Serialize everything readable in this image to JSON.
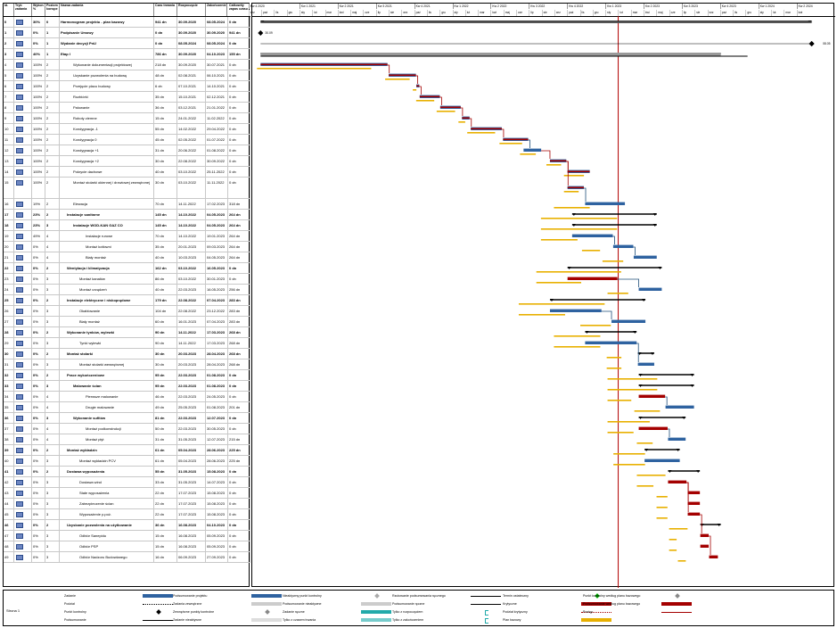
{
  "columns": {
    "id": "Id.",
    "mode": "Tryb zadania",
    "pct": "Wykon %",
    "level": "Poziom konspe",
    "name": "Nazwa zadania",
    "duration": "Czas trwania",
    "start": "Rozpoczęcie",
    "finish": "Zakończenie",
    "slack": "Całkowity zapas czasu"
  },
  "timeline": {
    "quarters": [
      "Kw 4 2020",
      "Kw 1 2021",
      "Kw 2 2021",
      "Kw 3 2021",
      "Kw 4 2021",
      "Kw 1 2022",
      "Kw 2 2022",
      "Kw 3 2022",
      "Kw 4 2022",
      "Kw 1 2023",
      "Kw 2 2023",
      "Kw 3 2023",
      "Kw 4 2023",
      "Kw 1 2024",
      "Kw 2 2024"
    ],
    "months": [
      "wrz",
      "paź",
      "lis",
      "gru",
      "sty",
      "lut",
      "mar",
      "kwi",
      "maj",
      "cze",
      "lip",
      "sie",
      "wrz",
      "paź",
      "lis",
      "gru",
      "sty",
      "lut",
      "mar",
      "kwi",
      "maj",
      "cze",
      "lip",
      "sie",
      "wrz",
      "paź",
      "lis",
      "gru",
      "sty",
      "lut",
      "mar",
      "kwi",
      "maj",
      "cze",
      "lip",
      "sie",
      "wrz",
      "paź",
      "lis",
      "gru",
      "sty",
      "lut",
      "mar",
      "kwi"
    ],
    "milestone_labels": [
      "30.09",
      "08.05"
    ]
  },
  "tasks": [
    {
      "id": "0",
      "pct": "30%",
      "lvl": "0",
      "name": "Harmonogram projektu - plan bazowy",
      "dur": "941 dn",
      "start": "30.09.2020",
      "finish": "08.05.2024",
      "slack": "0 dn",
      "bold": true
    },
    {
      "id": "1",
      "pct": "0%",
      "lvl": "1",
      "name": "Podpisanie Umowy",
      "dur": "0 dn",
      "start": "30.09.2020",
      "finish": "30.09.2020",
      "slack": "941 dn",
      "bold": true
    },
    {
      "id": "2",
      "pct": "0%",
      "lvl": "1",
      "name": "Wydanie decyzji PnU",
      "dur": "0 dn",
      "start": "08.05.2024",
      "finish": "08.05.2024",
      "slack": "0 dn",
      "bold": true
    },
    {
      "id": "3",
      "pct": "40%",
      "lvl": "1",
      "name": "Etap I",
      "dur": "786 dn",
      "start": "30.09.2020",
      "finish": "04.10.2023",
      "slack": "155 dn",
      "bold": true
    },
    {
      "id": "4",
      "pct": "100%",
      "lvl": "2",
      "name": "Wykonanie dokumentacji projektowej",
      "dur": "218 dn",
      "start": "30.09.2020",
      "finish": "30.07.2021",
      "slack": "0 dn"
    },
    {
      "id": "5",
      "pct": "100%",
      "lvl": "2",
      "name": "Uzyskanie pozwolenia na budowę",
      "dur": "48 dn",
      "start": "02.08.2021",
      "finish": "06.10.2021",
      "slack": "0 dn"
    },
    {
      "id": "6",
      "pct": "100%",
      "lvl": "2",
      "name": "Przejęcie placu budowy",
      "dur": "6 dn",
      "start": "07.10.2021",
      "finish": "14.10.2021",
      "slack": "0 dn"
    },
    {
      "id": "7",
      "pct": "100%",
      "lvl": "2",
      "name": "Rozbiórki",
      "dur": "35 dn",
      "start": "15.10.2021",
      "finish": "02.12.2021",
      "slack": "0 dn"
    },
    {
      "id": "8",
      "pct": "100%",
      "lvl": "2",
      "name": "Palowanie",
      "dur": "36 dn",
      "start": "03.12.2021",
      "finish": "21.01.2022",
      "slack": "0 dn"
    },
    {
      "id": "9",
      "pct": "100%",
      "lvl": "2",
      "name": "Roboty ziemne",
      "dur": "15 dn",
      "start": "24.01.2022",
      "finish": "11.02.2022",
      "slack": "0 dn"
    },
    {
      "id": "10",
      "pct": "100%",
      "lvl": "2",
      "name": "Kondygnacja -1",
      "dur": "55 dn",
      "start": "14.02.2022",
      "finish": "29.04.2022",
      "slack": "0 dn"
    },
    {
      "id": "11",
      "pct": "100%",
      "lvl": "2",
      "name": "Kondygnacja 0",
      "dur": "45 dn",
      "start": "02.05.2022",
      "finish": "01.07.2022",
      "slack": "0 dn"
    },
    {
      "id": "12",
      "pct": "100%",
      "lvl": "2",
      "name": "Kondygnacja +1",
      "dur": "31 dn",
      "start": "20.06.2022",
      "finish": "01.08.2022",
      "slack": "0 dn"
    },
    {
      "id": "13",
      "pct": "100%",
      "lvl": "2",
      "name": "Kondygnacja +2",
      "dur": "30 dn",
      "start": "22.08.2022",
      "finish": "30.09.2022",
      "slack": "0 dn"
    },
    {
      "id": "14",
      "pct": "100%",
      "lvl": "2",
      "name": "Pokrycie dachowe",
      "dur": "40 dn",
      "start": "03.10.2022",
      "finish": "25.11.2022",
      "slack": "0 dn"
    },
    {
      "id": "15",
      "pct": "100%",
      "lvl": "2",
      "name": "Montaż stolarki okiennej i drzwiowej zewnętrznej",
      "dur": "30 dn",
      "start": "03.10.2022",
      "finish": "11.11.2022",
      "slack": "0 dn",
      "tall": true
    },
    {
      "id": "16",
      "pct": "19%",
      "lvl": "2",
      "name": "Elewacja",
      "dur": "70 dn",
      "start": "14.11.2022",
      "finish": "17.02.2023",
      "slack": "318 dn"
    },
    {
      "id": "17",
      "pct": "23%",
      "lvl": "2",
      "name": "Instalacje sanitarne",
      "dur": "145 dn",
      "start": "14.10.2022",
      "finish": "04.05.2023",
      "slack": "264 dn",
      "bold": true
    },
    {
      "id": "18",
      "pct": "23%",
      "lvl": "3",
      "name": "Instalacje WOD-KAN GAZ CO",
      "dur": "145 dn",
      "start": "14.10.2022",
      "finish": "04.05.2023",
      "slack": "264 dn",
      "bold": true
    },
    {
      "id": "19",
      "pct": "49%",
      "lvl": "4",
      "name": "Instalacje rurowe",
      "dur": "70 dn",
      "start": "14.10.2022",
      "finish": "19.01.2023",
      "slack": "264 dn"
    },
    {
      "id": "20",
      "pct": "0%",
      "lvl": "4",
      "name": "Montaż kotłowni",
      "dur": "35 dn",
      "start": "20.01.2023",
      "finish": "09.03.2023",
      "slack": "264 dn"
    },
    {
      "id": "21",
      "pct": "0%",
      "lvl": "4",
      "name": "Biały montaż",
      "dur": "40 dn",
      "start": "10.03.2023",
      "finish": "04.05.2023",
      "slack": "264 dn"
    },
    {
      "id": "22",
      "pct": "0%",
      "lvl": "2",
      "name": "Wentylacja i klimatyzacja",
      "dur": "162 dn",
      "start": "03.10.2022",
      "finish": "16.05.2023",
      "slack": "0 dn",
      "bold": true
    },
    {
      "id": "23",
      "pct": "0%",
      "lvl": "3",
      "name": "Montaż kanałów",
      "dur": "86 dn",
      "start": "03.10.2022",
      "finish": "30.01.2023",
      "slack": "0 dn"
    },
    {
      "id": "24",
      "pct": "0%",
      "lvl": "3",
      "name": "Montaż urządzeń",
      "dur": "40 dn",
      "start": "22.03.2023",
      "finish": "16.05.2023",
      "slack": "256 dn"
    },
    {
      "id": "25",
      "pct": "0%",
      "lvl": "2",
      "name": "Instalacje elektryczne i niskoprądowe",
      "dur": "179 dn",
      "start": "22.08.2022",
      "finish": "07.04.2023",
      "slack": "283 dn",
      "bold": true
    },
    {
      "id": "26",
      "pct": "0%",
      "lvl": "3",
      "name": "Okablowanie",
      "dur": "104 dn",
      "start": "22.08.2022",
      "finish": "23.12.2022",
      "slack": "283 dn"
    },
    {
      "id": "27",
      "pct": "0%",
      "lvl": "3",
      "name": "Biały montaż",
      "dur": "60 dn",
      "start": "16.01.2023",
      "finish": "07.04.2023",
      "slack": "283 dn"
    },
    {
      "id": "28",
      "pct": "0%",
      "lvl": "2",
      "name": "Wykonanie tynków, wylewki",
      "dur": "90 dn",
      "start": "14.11.2022",
      "finish": "17.03.2023",
      "slack": "268 dn",
      "bold": true
    },
    {
      "id": "29",
      "pct": "0%",
      "lvl": "3",
      "name": "Tynki wylewki",
      "dur": "90 dn",
      "start": "14.11.2022",
      "finish": "17.03.2023",
      "slack": "268 dn"
    },
    {
      "id": "30",
      "pct": "0%",
      "lvl": "2",
      "name": "Montaż stolarki",
      "dur": "30 dn",
      "start": "20.03.2023",
      "finish": "28.04.2023",
      "slack": "268 dn",
      "bold": true
    },
    {
      "id": "31",
      "pct": "0%",
      "lvl": "3",
      "name": "Montaż stolarki wewnętrznej",
      "dur": "30 dn",
      "start": "20.03.2023",
      "finish": "28.04.2023",
      "slack": "268 dn"
    },
    {
      "id": "32",
      "pct": "0%",
      "lvl": "2",
      "name": "Prace wykończeniowe",
      "dur": "95 dn",
      "start": "22.03.2023",
      "finish": "01.08.2023",
      "slack": "0 dn",
      "bold": true
    },
    {
      "id": "33",
      "pct": "0%",
      "lvl": "3",
      "name": "Malowanie ścian",
      "dur": "95 dn",
      "start": "22.03.2023",
      "finish": "01.08.2023",
      "slack": "0 dn",
      "bold": true
    },
    {
      "id": "34",
      "pct": "0%",
      "lvl": "4",
      "name": "Pierwsze malowanie",
      "dur": "46 dn",
      "start": "22.03.2023",
      "finish": "24.05.2023",
      "slack": "0 dn"
    },
    {
      "id": "35",
      "pct": "0%",
      "lvl": "4",
      "name": "Drugie malowanie",
      "dur": "49 dn",
      "start": "25.05.2023",
      "finish": "01.08.2023",
      "slack": "201 dn"
    },
    {
      "id": "36",
      "pct": "0%",
      "lvl": "3",
      "name": "Wykonanie sufitów",
      "dur": "81 dn",
      "start": "22.03.2023",
      "finish": "12.07.2023",
      "slack": "0 dn",
      "bold": true
    },
    {
      "id": "37",
      "pct": "0%",
      "lvl": "4",
      "name": "Montaż podkonstrukcji",
      "dur": "50 dn",
      "start": "22.03.2023",
      "finish": "30.05.2023",
      "slack": "0 dn"
    },
    {
      "id": "38",
      "pct": "0%",
      "lvl": "4",
      "name": "Montaż płyt",
      "dur": "31 dn",
      "start": "31.05.2023",
      "finish": "12.07.2023",
      "slack": "215 dn"
    },
    {
      "id": "39",
      "pct": "0%",
      "lvl": "2",
      "name": "Montaż wykładzin",
      "dur": "61 dn",
      "start": "05.04.2023",
      "finish": "28.06.2023",
      "slack": "225 dn",
      "bold": true
    },
    {
      "id": "40",
      "pct": "0%",
      "lvl": "3",
      "name": "Montaż wykładzin PCV",
      "dur": "61 dn",
      "start": "05.04.2023",
      "finish": "28.06.2023",
      "slack": "225 dn"
    },
    {
      "id": "41",
      "pct": "0%",
      "lvl": "2",
      "name": "Dostawa wyposażenia",
      "dur": "55 dn",
      "start": "31.05.2023",
      "finish": "15.08.2023",
      "slack": "0 dn",
      "bold": true
    },
    {
      "id": "42",
      "pct": "0%",
      "lvl": "3",
      "name": "Dostawa wind",
      "dur": "33 dn",
      "start": "31.05.2023",
      "finish": "14.07.2023",
      "slack": "0 dn"
    },
    {
      "id": "43",
      "pct": "0%",
      "lvl": "3",
      "name": "Stałe wyposażenia",
      "dur": "22 dn",
      "start": "17.07.2023",
      "finish": "15.08.2023",
      "slack": "0 dn"
    },
    {
      "id": "44",
      "pct": "0%",
      "lvl": "3",
      "name": "Zabezpieczenie ścian",
      "dur": "22 dn",
      "start": "17.07.2023",
      "finish": "15.08.2023",
      "slack": "0 dn"
    },
    {
      "id": "45",
      "pct": "0%",
      "lvl": "3",
      "name": "Wyposażenie p.poż.",
      "dur": "22 dn",
      "start": "17.07.2023",
      "finish": "15.08.2023",
      "slack": "0 dn"
    },
    {
      "id": "46",
      "pct": "0%",
      "lvl": "2",
      "name": "Uzyskanie pozwolenia na użytkowanie",
      "dur": "36 dn",
      "start": "16.08.2023",
      "finish": "04.10.2023",
      "slack": "0 dn",
      "bold": true
    },
    {
      "id": "47",
      "pct": "0%",
      "lvl": "3",
      "name": "Odbiór Sanepidu",
      "dur": "15 dn",
      "start": "16.08.2023",
      "finish": "05.09.2023",
      "slack": "0 dn"
    },
    {
      "id": "48",
      "pct": "0%",
      "lvl": "3",
      "name": "Odbiór PSP",
      "dur": "15 dn",
      "start": "16.08.2023",
      "finish": "05.09.2023",
      "slack": "0 dn"
    },
    {
      "id": "49",
      "pct": "0%",
      "lvl": "3",
      "name": "Odbiór Nadzoru Budowlanego",
      "dur": "16 dn",
      "start": "06.09.2023",
      "finish": "27.09.2023",
      "slack": "0 dn"
    }
  ],
  "legend": {
    "page": "Strona 1",
    "items": [
      "Zadanie",
      "Podział",
      "Punkt kontrolny",
      "Podsumowanie",
      "Podsumowanie projektu",
      "Zadania zewnętrzne",
      "Zewnętrzne punkty kontrolne",
      "Zadanie nieaktywne",
      "Nieaktywny punkt kontrolny",
      "Podsumowanie nieaktywne",
      "Zadanie ręczne",
      "Tylko z czasem trwania",
      "Rzutowanie podsumowania ręcznego",
      "Podsumowanie ręczne",
      "Tylko z rozpoczęciem",
      "Tylko z zakończeniem",
      "Termin ostateczny",
      "Krytyczne",
      "Podział krytyczny",
      "Plan bazowy",
      "Punkt kontrolny według planu bazowego",
      "Podsumowanie według planu bazowego",
      "Postęp"
    ]
  },
  "colors": {
    "task": "#2e62a0",
    "critical": "#a40000",
    "baseline": "#e8b000",
    "status_line": "#b00000",
    "summary": "#000000",
    "link": "#1f4e79"
  }
}
